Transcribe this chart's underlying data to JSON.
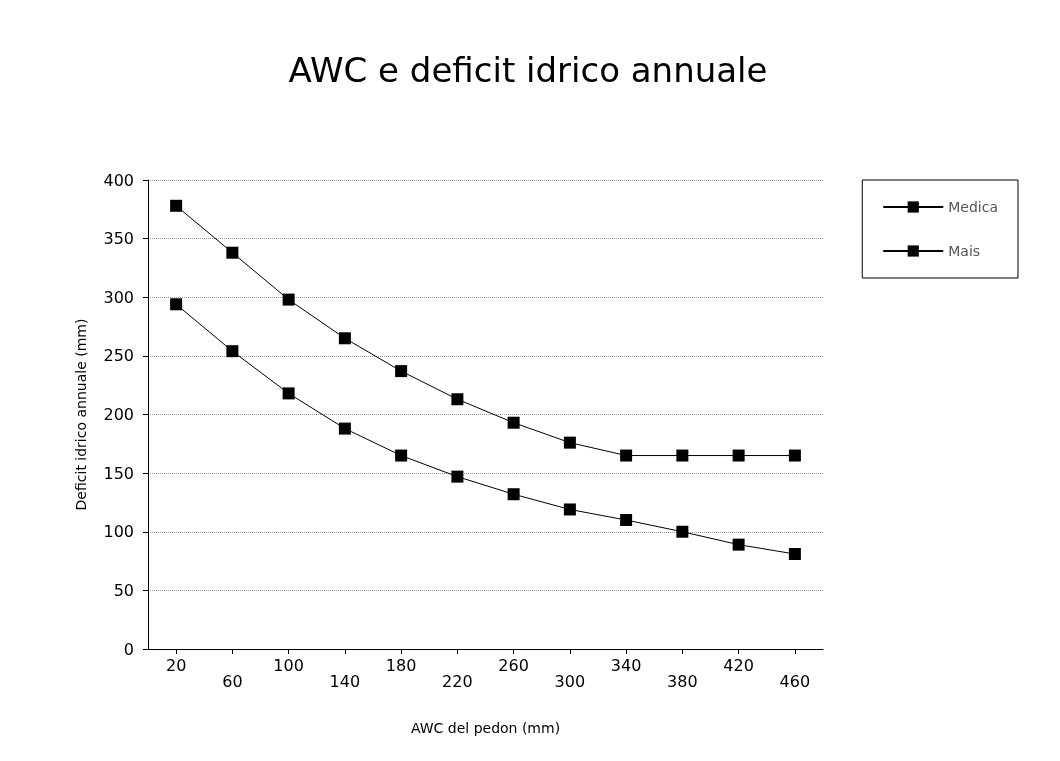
{
  "chart_data": {
    "type": "line",
    "title": "AWC e deficit idrico annuale",
    "xlabel": "AWC del pedon (mm)",
    "ylabel": "Deficit idrico annuale (mm)",
    "categories": [
      "20",
      "60",
      "100",
      "140",
      "180",
      "220",
      "260",
      "300",
      "340",
      "380",
      "420",
      "460"
    ],
    "series": [
      {
        "name": "Medica",
        "color": "#000000",
        "values": [
          378,
          338,
          298,
          265,
          237,
          213,
          193,
          176,
          165,
          165,
          165,
          165
        ]
      },
      {
        "name": "Mais",
        "color": "#000000",
        "values": [
          294,
          254,
          218,
          188,
          165,
          147,
          132,
          119,
          110,
          100,
          89,
          81
        ]
      }
    ],
    "ylim": [
      0,
      400
    ],
    "yticks": [
      0,
      50,
      100,
      150,
      200,
      250,
      300,
      350,
      400
    ],
    "grid": "y",
    "legend": "top right",
    "marker": "square",
    "line_style": "solid"
  }
}
